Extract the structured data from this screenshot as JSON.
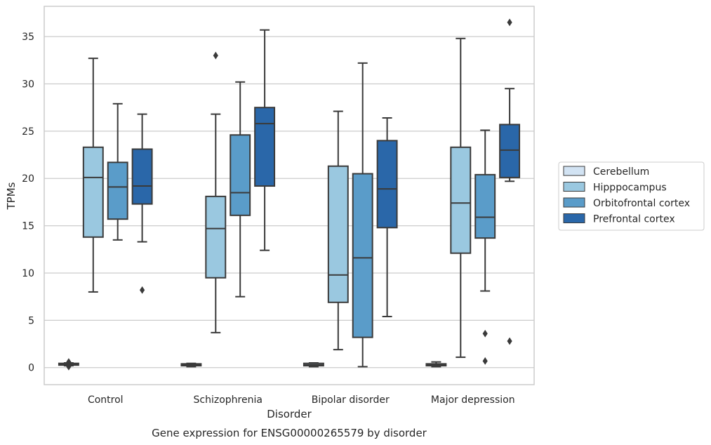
{
  "chart_data": {
    "type": "box",
    "caption": "Gene expression for ENSG00000265579 by disorder",
    "xlabel": "Disorder",
    "ylabel": "TPMs",
    "ylim": [
      -1.8,
      38.2
    ],
    "yticks": [
      0,
      5,
      10,
      15,
      20,
      25,
      30,
      35
    ],
    "grid": true,
    "legend_position": "right",
    "categories": [
      "Control",
      "Schizophrenia",
      "Bipolar disorder",
      "Major depression"
    ],
    "series": [
      {
        "name": "Cerebellum",
        "color": "#d2e3f3",
        "boxes": [
          {
            "whisker_low": 0.2,
            "q1": 0.3,
            "median": 0.35,
            "q3": 0.45,
            "whisker_high": 0.5,
            "outliers": [
              0.1,
              0.6
            ]
          },
          {
            "whisker_low": 0.1,
            "q1": 0.2,
            "median": 0.3,
            "q3": 0.4,
            "whisker_high": 0.45,
            "outliers": []
          },
          {
            "whisker_low": 0.1,
            "q1": 0.2,
            "median": 0.3,
            "q3": 0.45,
            "whisker_high": 0.5,
            "outliers": []
          },
          {
            "whisker_low": 0.1,
            "q1": 0.2,
            "median": 0.3,
            "q3": 0.4,
            "whisker_high": 0.6,
            "outliers": []
          }
        ]
      },
      {
        "name": "Hipppocampus",
        "color": "#9ac8e0",
        "boxes": [
          {
            "whisker_low": 8.0,
            "q1": 13.8,
            "median": 20.1,
            "q3": 23.3,
            "whisker_high": 32.7,
            "outliers": []
          },
          {
            "whisker_low": 3.7,
            "q1": 9.5,
            "median": 14.7,
            "q3": 18.1,
            "whisker_high": 26.8,
            "outliers": [
              33.0
            ]
          },
          {
            "whisker_low": 1.9,
            "q1": 6.9,
            "median": 9.8,
            "q3": 21.3,
            "whisker_high": 27.1,
            "outliers": []
          },
          {
            "whisker_low": 1.1,
            "q1": 12.1,
            "median": 17.4,
            "q3": 23.3,
            "whisker_high": 34.8,
            "outliers": []
          }
        ]
      },
      {
        "name": "Orbitofrontal cortex",
        "color": "#5a9cc9",
        "boxes": [
          {
            "whisker_low": 13.5,
            "q1": 15.7,
            "median": 19.1,
            "q3": 21.7,
            "whisker_high": 27.9,
            "outliers": []
          },
          {
            "whisker_low": 7.5,
            "q1": 16.1,
            "median": 18.5,
            "q3": 24.6,
            "whisker_high": 30.2,
            "outliers": []
          },
          {
            "whisker_low": 0.1,
            "q1": 3.2,
            "median": 11.6,
            "q3": 20.5,
            "whisker_high": 32.2,
            "outliers": []
          },
          {
            "whisker_low": 8.1,
            "q1": 13.7,
            "median": 15.9,
            "q3": 20.4,
            "whisker_high": 25.1,
            "outliers": [
              3.6,
              0.7
            ]
          }
        ]
      },
      {
        "name": "Prefrontal cortex",
        "color": "#2a67a9",
        "boxes": [
          {
            "whisker_low": 13.3,
            "q1": 17.3,
            "median": 19.2,
            "q3": 23.1,
            "whisker_high": 26.8,
            "outliers": [
              8.2
            ]
          },
          {
            "whisker_low": 12.4,
            "q1": 19.2,
            "median": 25.8,
            "q3": 27.5,
            "whisker_high": 35.7,
            "outliers": []
          },
          {
            "whisker_low": 5.4,
            "q1": 14.8,
            "median": 18.9,
            "q3": 24.0,
            "whisker_high": 26.4,
            "outliers": []
          },
          {
            "whisker_low": 19.7,
            "q1": 20.1,
            "median": 23.0,
            "q3": 25.7,
            "whisker_high": 29.5,
            "outliers": [
              2.8,
              36.5
            ]
          }
        ]
      }
    ],
    "colors": {
      "axis_frame": "#cccccc",
      "grid": "#cccccc",
      "box_edge": "#3a3a3a",
      "text": "#262626"
    }
  }
}
